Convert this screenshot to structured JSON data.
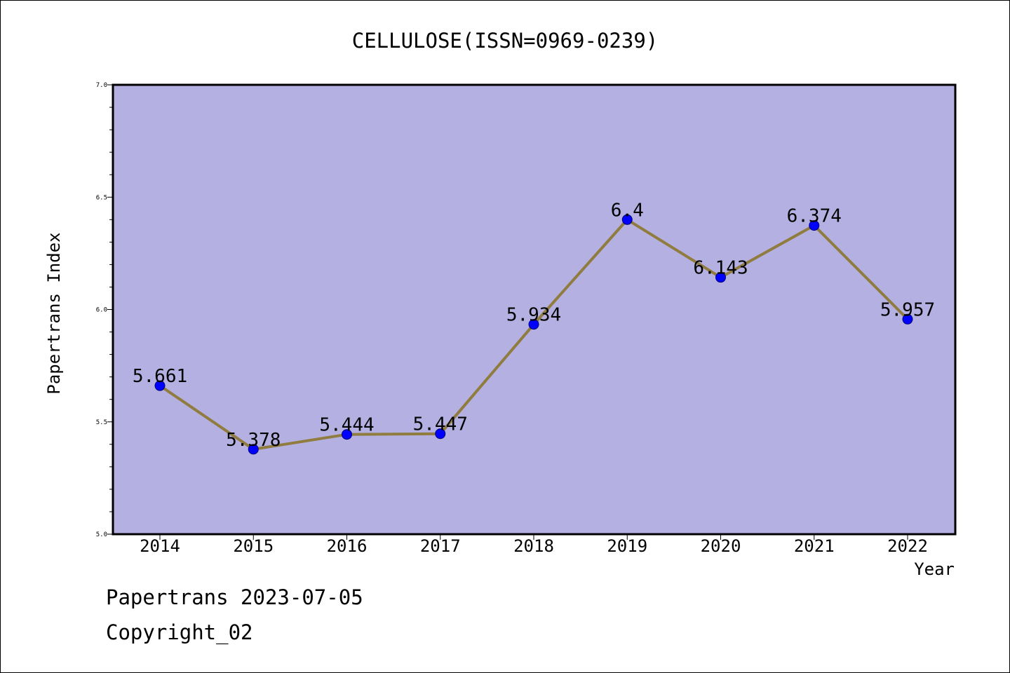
{
  "chart_data": {
    "type": "line",
    "title": "CELLULOSE(ISSN=0969-0239)",
    "xlabel": "Year",
    "ylabel": "Papertrans Index",
    "categories": [
      "2014",
      "2015",
      "2016",
      "2017",
      "2018",
      "2019",
      "2020",
      "2021",
      "2022"
    ],
    "values": [
      5.661,
      5.378,
      5.444,
      5.447,
      5.934,
      6.4,
      6.143,
      6.374,
      5.957
    ],
    "data_labels": [
      "5.661",
      "5.378",
      "5.444",
      "5.447",
      "5.934",
      "6.4",
      "6.143",
      "6.374",
      "5.957"
    ],
    "ylim": [
      5.0,
      7.0
    ],
    "yticks": [
      "5.0",
      "5.5",
      "6.0",
      "6.5",
      "7.0"
    ],
    "grid": false,
    "legend": "none",
    "colors": {
      "plot_background": "#b5b0e2",
      "line": "#8f7c3e",
      "marker": "#0000ff"
    }
  },
  "footer": {
    "source": "Papertrans 2023-07-05",
    "copyright": "Copyright_02"
  }
}
